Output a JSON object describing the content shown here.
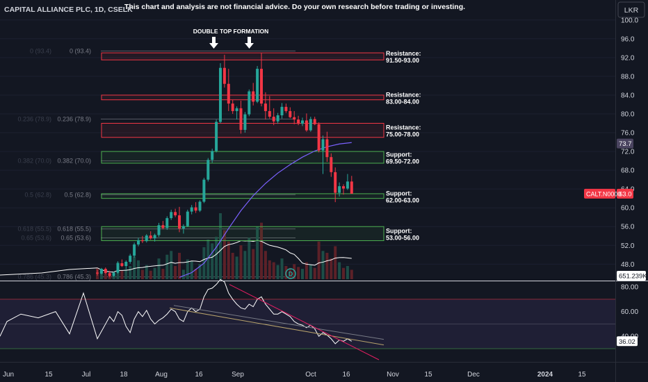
{
  "header": {
    "symbol_title": "CAPITAL ALLIANCE PLC, 1D, CSELK",
    "disclaimer": "This chart and analysis are not financial advice. Do your own research before trading or investing.",
    "currency": "LKR"
  },
  "annotation": {
    "double_top": "DOUBLE TOP FORMATION"
  },
  "colors": {
    "bg": "#131722",
    "up": "#26a69a",
    "down": "#f23645",
    "resistance": "#f23645",
    "support": "#4caf50",
    "ma": "#7b61ff",
    "rsi_band": "#7e57c2",
    "fib": "#787b86"
  },
  "chart_data": [
    {
      "type": "candlestick",
      "yaxis_ticks": [
        48.0,
        52.0,
        56.0,
        60.0,
        64.0,
        68.0,
        72.0,
        76.0,
        80.0,
        84.0,
        88.0,
        92.0,
        96.0,
        100.0
      ],
      "ylim": [
        44.5,
        101
      ],
      "xaxis_ticks": [
        "Jun",
        "15",
        "Jul",
        "18",
        "Aug",
        "16",
        "Sep",
        "Oct",
        "16",
        "Nov",
        "15",
        "Dec",
        "2024",
        "15"
      ],
      "price_badges": [
        {
          "label": "",
          "value": "73.7",
          "y": 73.7,
          "color": "#4a4460"
        },
        {
          "label": "CALT.N0000",
          "value": "63.0",
          "y": 63.0,
          "color": "#f23645"
        }
      ],
      "candles": [
        [
          46.2,
          46.8,
          45.6,
          46.0
        ],
        [
          46.0,
          47.2,
          45.8,
          47.0
        ],
        [
          47.0,
          47.3,
          45.9,
          46.1
        ],
        [
          46.1,
          46.6,
          45.2,
          45.5
        ],
        [
          45.5,
          46.4,
          45.3,
          46.2
        ],
        [
          46.2,
          48.6,
          46.0,
          48.2
        ],
        [
          48.2,
          49.0,
          47.4,
          47.6
        ],
        [
          47.6,
          48.8,
          47.0,
          48.5
        ],
        [
          48.5,
          50.2,
          48.1,
          49.8
        ],
        [
          49.8,
          52.6,
          49.4,
          52.2
        ],
        [
          52.2,
          53.6,
          51.8,
          53.1
        ],
        [
          53.1,
          54.0,
          52.5,
          52.9
        ],
        [
          52.9,
          54.4,
          52.6,
          54.1
        ],
        [
          54.1,
          55.0,
          53.2,
          53.5
        ],
        [
          53.5,
          54.5,
          52.8,
          54.2
        ],
        [
          54.2,
          56.8,
          53.8,
          56.3
        ],
        [
          56.3,
          57.2,
          55.4,
          55.7
        ],
        [
          55.7,
          58.2,
          55.3,
          57.8
        ],
        [
          57.8,
          59.6,
          57.4,
          59.1
        ],
        [
          59.1,
          59.8,
          58.0,
          58.4
        ],
        [
          58.4,
          60.2,
          54.8,
          55.6
        ],
        [
          55.6,
          56.5,
          54.5,
          56.1
        ],
        [
          56.1,
          59.6,
          55.9,
          59.2
        ],
        [
          59.2,
          60.6,
          58.6,
          60.1
        ],
        [
          60.1,
          61.2,
          58.9,
          59.4
        ],
        [
          59.4,
          61.6,
          59.1,
          61.3
        ],
        [
          61.3,
          66.4,
          61.0,
          66.0
        ],
        [
          66.0,
          70.6,
          65.6,
          70.2
        ],
        [
          70.2,
          72.6,
          69.6,
          72.1
        ],
        [
          72.1,
          78.8,
          71.8,
          78.3
        ],
        [
          78.3,
          90.8,
          78.0,
          89.8
        ],
        [
          89.8,
          92.6,
          85.6,
          86.4
        ],
        [
          86.4,
          89.6,
          80.6,
          82.2
        ],
        [
          82.2,
          83.0,
          80.0,
          80.6
        ],
        [
          80.6,
          81.6,
          78.8,
          81.2
        ],
        [
          81.2,
          82.8,
          75.8,
          76.6
        ],
        [
          76.6,
          80.4,
          76.0,
          79.9
        ],
        [
          79.9,
          85.2,
          79.5,
          84.8
        ],
        [
          84.8,
          86.6,
          81.8,
          82.6
        ],
        [
          82.6,
          90.2,
          82.3,
          89.6
        ],
        [
          89.6,
          93.0,
          81.6,
          82.2
        ],
        [
          82.2,
          84.6,
          78.8,
          80.6
        ],
        [
          80.6,
          83.8,
          79.0,
          79.4
        ],
        [
          79.4,
          81.2,
          77.6,
          78.4
        ],
        [
          78.4,
          80.2,
          77.9,
          79.7
        ],
        [
          79.7,
          82.3,
          79.0,
          81.5
        ],
        [
          81.5,
          82.2,
          80.2,
          80.6
        ],
        [
          80.6,
          81.4,
          79.1,
          79.3
        ],
        [
          79.3,
          80.6,
          77.8,
          78.8
        ],
        [
          78.8,
          79.6,
          77.6,
          77.9
        ],
        [
          77.9,
          79.2,
          77.4,
          78.6
        ],
        [
          78.6,
          80.1,
          76.2,
          76.5
        ],
        [
          76.5,
          79.4,
          76.2,
          78.9
        ],
        [
          78.9,
          79.4,
          77.6,
          77.8
        ],
        [
          77.8,
          78.2,
          71.8,
          72.2
        ],
        [
          72.2,
          75.4,
          67.2,
          74.6
        ],
        [
          74.6,
          76.2,
          69.8,
          70.8
        ],
        [
          70.8,
          71.6,
          66.6,
          67.6
        ],
        [
          67.6,
          68.6,
          61.2,
          63.2
        ],
        [
          63.2,
          65.4,
          62.4,
          64.6
        ],
        [
          64.6,
          65.0,
          62.8,
          64.1
        ],
        [
          64.1,
          67.2,
          63.8,
          65.6
        ],
        [
          65.6,
          66.8,
          63.0,
          63.0
        ]
      ],
      "moving_average": [
        [
          20,
          45.2
        ],
        [
          23,
          46.2
        ],
        [
          26,
          48.2
        ],
        [
          29,
          51.6
        ],
        [
          32,
          55.6
        ],
        [
          35,
          59.4
        ],
        [
          38,
          62.6
        ],
        [
          41,
          65.2
        ],
        [
          44,
          67.4
        ],
        [
          47,
          69.2
        ],
        [
          50,
          70.8
        ],
        [
          53,
          72.1
        ],
        [
          56,
          73.0
        ],
        [
          59,
          73.6
        ],
        [
          62,
          73.9
        ]
      ],
      "fib_levels": [
        {
          "ratio": "0",
          "price": 93.4
        },
        {
          "ratio": "0.236",
          "price": 78.9
        },
        {
          "ratio": "0.382",
          "price": 70.0
        },
        {
          "ratio": "0.5",
          "price": 62.8
        },
        {
          "ratio": "0.618",
          "price": 55.5
        },
        {
          "ratio": "0.65",
          "price": 53.6
        },
        {
          "ratio": "0.786",
          "price": 45.3
        }
      ],
      "zones": [
        {
          "kind": "resistance",
          "title": "Resistance:",
          "range": "91.50-93.00",
          "low": 91.5,
          "high": 93.0
        },
        {
          "kind": "resistance",
          "title": "Resistance:",
          "range": "83.00-84.00",
          "low": 83.0,
          "high": 84.0
        },
        {
          "kind": "resistance",
          "title": "Resistance:",
          "range": "75.00-78.00",
          "low": 75.0,
          "high": 78.0
        },
        {
          "kind": "support",
          "title": "Support:",
          "range": "69.50-72.00",
          "low": 69.5,
          "high": 72.0
        },
        {
          "kind": "support",
          "title": "Support:",
          "range": "62.00-63.00",
          "low": 62.0,
          "high": 63.0
        },
        {
          "kind": "support",
          "title": "Support:",
          "range": "53.00-56.00",
          "low": 53.0,
          "high": 56.0
        }
      ]
    },
    {
      "type": "bar",
      "series_label": "volume",
      "badge": "651.239K",
      "volume": [
        12,
        8,
        6,
        5,
        7,
        18,
        9,
        11,
        14,
        24,
        20,
        10,
        15,
        9,
        12,
        22,
        11,
        26,
        30,
        14,
        28,
        10,
        21,
        19,
        11,
        16,
        34,
        42,
        38,
        45,
        70,
        52,
        40,
        28,
        24,
        36,
        30,
        44,
        32,
        56,
        60,
        30,
        20,
        18,
        15,
        22,
        14,
        12,
        16,
        13,
        11,
        18,
        15,
        12,
        40,
        30,
        28,
        22,
        35,
        18,
        12,
        14,
        10
      ]
    },
    {
      "type": "line",
      "series_label": "RSI",
      "yaxis_ticks": [
        40.0,
        60.0,
        80.0
      ],
      "band": [
        30,
        70
      ],
      "last_value": "36.02",
      "values": [
        38,
        44,
        50,
        56,
        52,
        60,
        57,
        48,
        43,
        54,
        60,
        56,
        61,
        54,
        50,
        53,
        55,
        58,
        62,
        60,
        54,
        52,
        60,
        63,
        60,
        62,
        72,
        78,
        79,
        82,
        86,
        84,
        75,
        70,
        66,
        63,
        62,
        66,
        64,
        70,
        72,
        66,
        62,
        58,
        58,
        60,
        58,
        56,
        52,
        50,
        49,
        47,
        49,
        46,
        40,
        43,
        41,
        38,
        34,
        37,
        36,
        38,
        36
      ]
    }
  ]
}
